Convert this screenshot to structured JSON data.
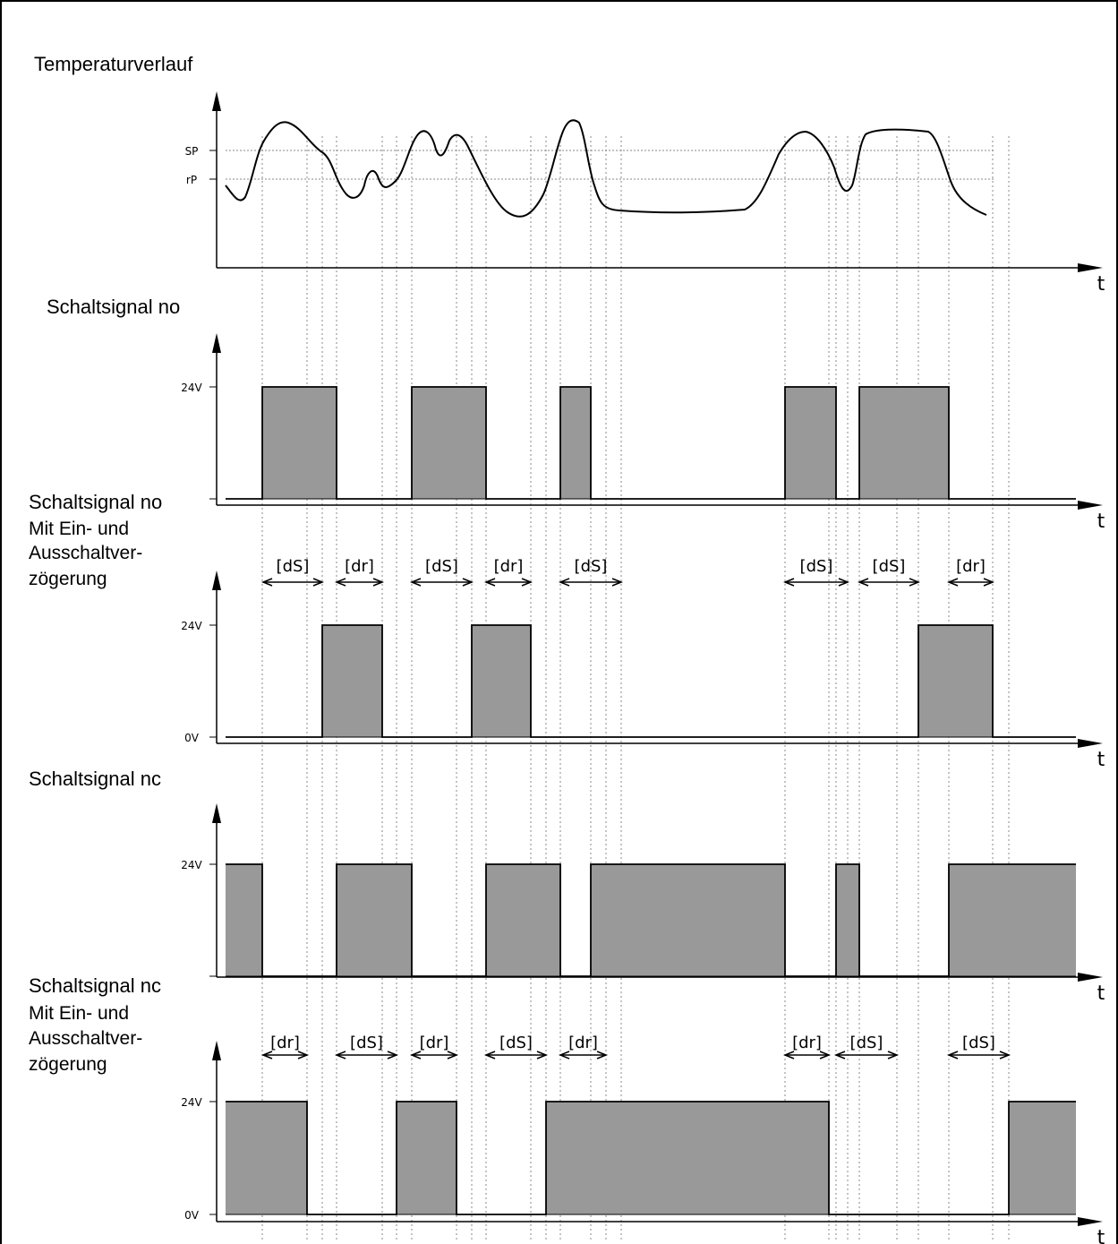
{
  "temperature": {
    "title": "Temperaturverlauf",
    "levels": {
      "upper": "SP",
      "lower": "rP"
    },
    "time_label": "t"
  },
  "panels": [
    {
      "id": "no",
      "title": "Schaltsignal no",
      "subtitle": [],
      "high_label": "24V",
      "low_label": "",
      "time_label": "t",
      "delays": []
    },
    {
      "id": "no-delay",
      "title": "Schaltsignal no",
      "subtitle": [
        "Mit Ein- und",
        "Ausschaltver-",
        "zögerung"
      ],
      "high_label": "24V",
      "low_label": "0V",
      "time_label": "t",
      "delays": [
        {
          "label": "[dS]",
          "kind": "dS"
        },
        {
          "label": "[dr]",
          "kind": "dr"
        },
        {
          "label": "[dS]",
          "kind": "dS"
        },
        {
          "label": "[dr]",
          "kind": "dr"
        },
        {
          "label": "[dS]",
          "kind": "dS"
        },
        {
          "label": "[dS]",
          "kind": "dS"
        },
        {
          "label": "[dS]",
          "kind": "dS"
        },
        {
          "label": "[dr]",
          "kind": "dr"
        }
      ]
    },
    {
      "id": "nc",
      "title": "Schaltsignal nc",
      "subtitle": [],
      "high_label": "24V",
      "low_label": "",
      "time_label": "t",
      "delays": []
    },
    {
      "id": "nc-delay",
      "title": "Schaltsignal nc",
      "subtitle": [
        "Mit Ein- und",
        "Ausschaltver-",
        "zögerung"
      ],
      "high_label": "24V",
      "low_label": "0V",
      "time_label": "t",
      "delays": [
        {
          "label": "[dr]",
          "kind": "dr"
        },
        {
          "label": "[dS]",
          "kind": "dS"
        },
        {
          "label": "[dr]",
          "kind": "dr"
        },
        {
          "label": "[dS]",
          "kind": "dS"
        },
        {
          "label": "[dr]",
          "kind": "dr"
        },
        {
          "label": "[dr]",
          "kind": "dr"
        },
        {
          "label": "[dS]",
          "kind": "dS"
        },
        {
          "label": "[dS]",
          "kind": "dS"
        }
      ]
    }
  ],
  "colors": {
    "fill": "#999999",
    "line": "#000000",
    "guide": "#888888"
  }
}
